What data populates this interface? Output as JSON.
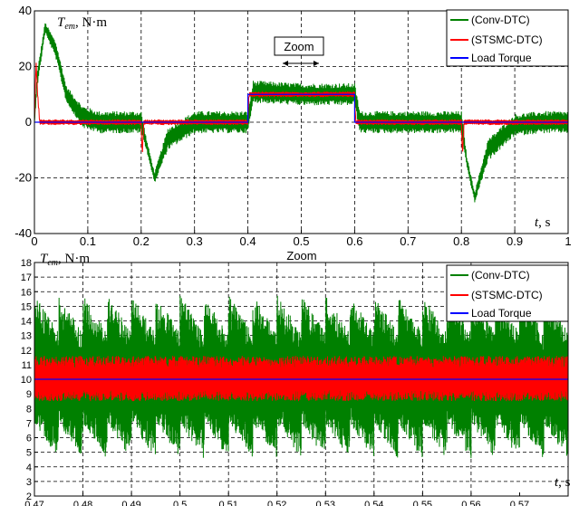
{
  "colors": {
    "conv": "#008000",
    "stsmc": "#ff0000",
    "load": "#0000ff"
  },
  "chart_data": [
    {
      "type": "line",
      "ylabel_italic": "T",
      "ylabel_sub": "em",
      "ylabel_unit": ", N·m",
      "xlabel_italic": "t",
      "xlabel_unit": ", s",
      "xlim": [
        0,
        1
      ],
      "ylim": [
        -40,
        40
      ],
      "grid": true,
      "xticks": [
        "0",
        "0.1",
        "0.2",
        "0.3",
        "0.4",
        "0.5",
        "0.6",
        "0.7",
        "0.8",
        "0.9",
        "1"
      ],
      "yticks": [
        "-40",
        "-20",
        "0",
        "20",
        "40"
      ],
      "legend_position": "top-right",
      "annotation": "Zoom",
      "series": [
        {
          "name": "(Conv-DTC)",
          "color": "#008000",
          "envelope": {
            "x": [
              0,
              0.005,
              0.02,
              0.04,
              0.06,
              0.09,
              0.12,
              0.15,
              0.2,
              0.21,
              0.225,
              0.25,
              0.3,
              0.35,
              0.4,
              0.41,
              0.5,
              0.6,
              0.61,
              0.7,
              0.8,
              0.81,
              0.825,
              0.85,
              0.9,
              0.95,
              1.0
            ],
            "center": [
              0,
              15,
              34,
              26,
              10,
              2,
              0,
              0,
              0,
              -8,
              -20,
              -6,
              0,
              0,
              0,
              11,
              10,
              10,
              0,
              0,
              0,
              -14,
              -27,
              -10,
              -1,
              0,
              0
            ],
            "half_band": [
              0,
              3,
              2,
              3,
              3,
              4,
              4,
              4,
              4,
              2,
              2,
              4,
              4,
              4,
              4,
              4,
              4,
              4,
              4,
              4,
              4,
              2,
              2,
              4,
              4,
              4,
              4
            ]
          }
        },
        {
          "name": "(STSMC-DTC)",
          "color": "#ff0000",
          "envelope": {
            "x": [
              0,
              0.003,
              0.006,
              0.01,
              0.2,
              0.202,
              0.205,
              0.4,
              0.402,
              0.6,
              0.602,
              0.8,
              0.802,
              0.805,
              1.0
            ],
            "center": [
              0,
              22,
              10,
              0,
              0,
              -12,
              0,
              0,
              10,
              10,
              0,
              0,
              -12,
              0,
              0
            ],
            "half_band": [
              1,
              1,
              1,
              1,
              1,
              1,
              1,
              1,
              1,
              1,
              1,
              1,
              1,
              1,
              1
            ]
          }
        },
        {
          "name": "Load Torque",
          "color": "#0000ff",
          "x": [
            0,
            0.4,
            0.4,
            0.6,
            0.6,
            1.0
          ],
          "y": [
            0,
            0,
            10,
            10,
            0,
            0
          ]
        }
      ]
    },
    {
      "type": "line",
      "title": "Zoom",
      "ylabel_italic": "T",
      "ylabel_sub": "em",
      "ylabel_unit": ", N·m",
      "xlabel_italic": "t",
      "xlabel_unit": ", s",
      "xlim": [
        0.47,
        0.58
      ],
      "ylim": [
        2,
        18
      ],
      "grid": true,
      "xticks": [
        "0.47",
        "0.48",
        "0.49",
        "0.5",
        "0.51",
        "0.52",
        "0.53",
        "0.54",
        "0.55",
        "0.56",
        "0.57"
      ],
      "yticks": [
        "2",
        "3",
        "4",
        "5",
        "6",
        "7",
        "8",
        "9",
        "10",
        "11",
        "12",
        "13",
        "14",
        "15",
        "16",
        "17",
        "18"
      ],
      "legend_position": "top-right",
      "series": [
        {
          "name": "(Conv-DTC)",
          "color": "#008000",
          "band": {
            "low": 4.5,
            "high": 15.8,
            "center": 10
          }
        },
        {
          "name": "(STSMC-DTC)",
          "color": "#ff0000",
          "band": {
            "low": 8.5,
            "high": 11.6,
            "center": 10
          }
        },
        {
          "name": "Load Torque",
          "color": "#0000ff",
          "x": [
            0.47,
            0.58
          ],
          "y": [
            10,
            10
          ]
        }
      ]
    }
  ]
}
